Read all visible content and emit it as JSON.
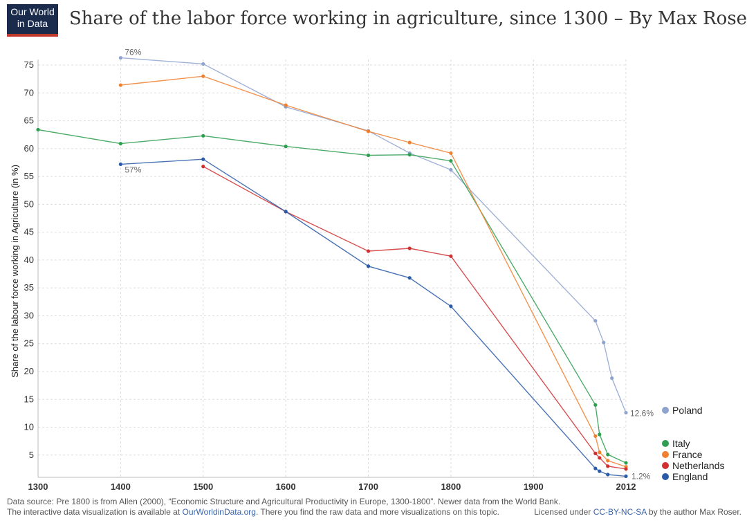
{
  "logo": {
    "line1": "Our World",
    "line2": "in Data"
  },
  "chart_data": {
    "type": "line",
    "title": "Share of the labor force working in agriculture, since 1300 – By Max Roser",
    "xlabel": "",
    "ylabel": "Share of the labour force working in Agriculture (in %)",
    "xlim": [
      1300,
      2012
    ],
    "ylim": [
      1,
      76
    ],
    "x_ticks": [
      1300,
      1400,
      1500,
      1600,
      1700,
      1800,
      1900,
      2012
    ],
    "y_ticks": [
      5,
      10,
      15,
      20,
      25,
      30,
      35,
      40,
      45,
      50,
      55,
      60,
      65,
      70,
      75
    ],
    "grid": true,
    "legend_position": "right",
    "series": [
      {
        "name": "Poland",
        "color": "#8fa3cf",
        "x": [
          1400,
          1500,
          1600,
          1700,
          1750,
          1800,
          1975,
          1985,
          1995,
          2012
        ],
        "y": [
          76.3,
          75.2,
          67.5,
          63.2,
          59.2,
          56.2,
          29.1,
          25.2,
          18.8,
          12.6
        ]
      },
      {
        "name": "Italy",
        "color": "#2e9e4f",
        "x": [
          1300,
          1400,
          1500,
          1600,
          1700,
          1750,
          1800,
          1975,
          1980,
          1990,
          2012
        ],
        "y": [
          63.4,
          60.9,
          62.3,
          60.4,
          58.8,
          58.9,
          57.8,
          14.0,
          8.7,
          5.1,
          3.6
        ]
      },
      {
        "name": "France",
        "color": "#f08030",
        "x": [
          1400,
          1500,
          1600,
          1700,
          1750,
          1800,
          1975,
          1980,
          1990,
          2012
        ],
        "y": [
          71.4,
          73.0,
          67.8,
          63.1,
          61.1,
          59.2,
          8.4,
          5.5,
          4.0,
          2.9
        ]
      },
      {
        "name": "Netherlands",
        "color": "#d03030",
        "x": [
          1500,
          1600,
          1700,
          1750,
          1800,
          1975,
          1980,
          1990,
          2012
        ],
        "y": [
          56.8,
          48.7,
          41.6,
          42.1,
          40.7,
          5.3,
          4.5,
          3.0,
          2.5
        ]
      },
      {
        "name": "England",
        "color": "#2a5ba8",
        "x": [
          1400,
          1500,
          1600,
          1700,
          1750,
          1800,
          1975,
          1980,
          1990,
          2012
        ],
        "y": [
          57.2,
          58.1,
          48.7,
          38.9,
          36.8,
          31.7,
          2.6,
          2.1,
          1.5,
          1.2
        ]
      }
    ],
    "annotations": [
      {
        "text": "76%",
        "x": 1400,
        "y": 76.3
      },
      {
        "text": "57%",
        "x": 1400,
        "y": 57.2
      },
      {
        "text": "12.6%",
        "x": 2012,
        "y": 12.6
      },
      {
        "text": "1.2%",
        "x": 2012,
        "y": 1.2
      }
    ]
  },
  "footer": {
    "source_text": "Data source: Pre 1800 is from Allen (2000), “Economic Structure and Agricultural Productivity in Europe, 1300-1800”. Newer data from the World Bank.",
    "interactive_prefix": "The interactive data visualization is available at ",
    "interactive_link": "OurWorldinData.org",
    "interactive_suffix": ". There you find the raw data and more visualizations on this topic.",
    "license_prefix": "Licensed under ",
    "license_link": "CC-BY-NC-SA",
    "license_suffix": " by the author Max Roser."
  }
}
